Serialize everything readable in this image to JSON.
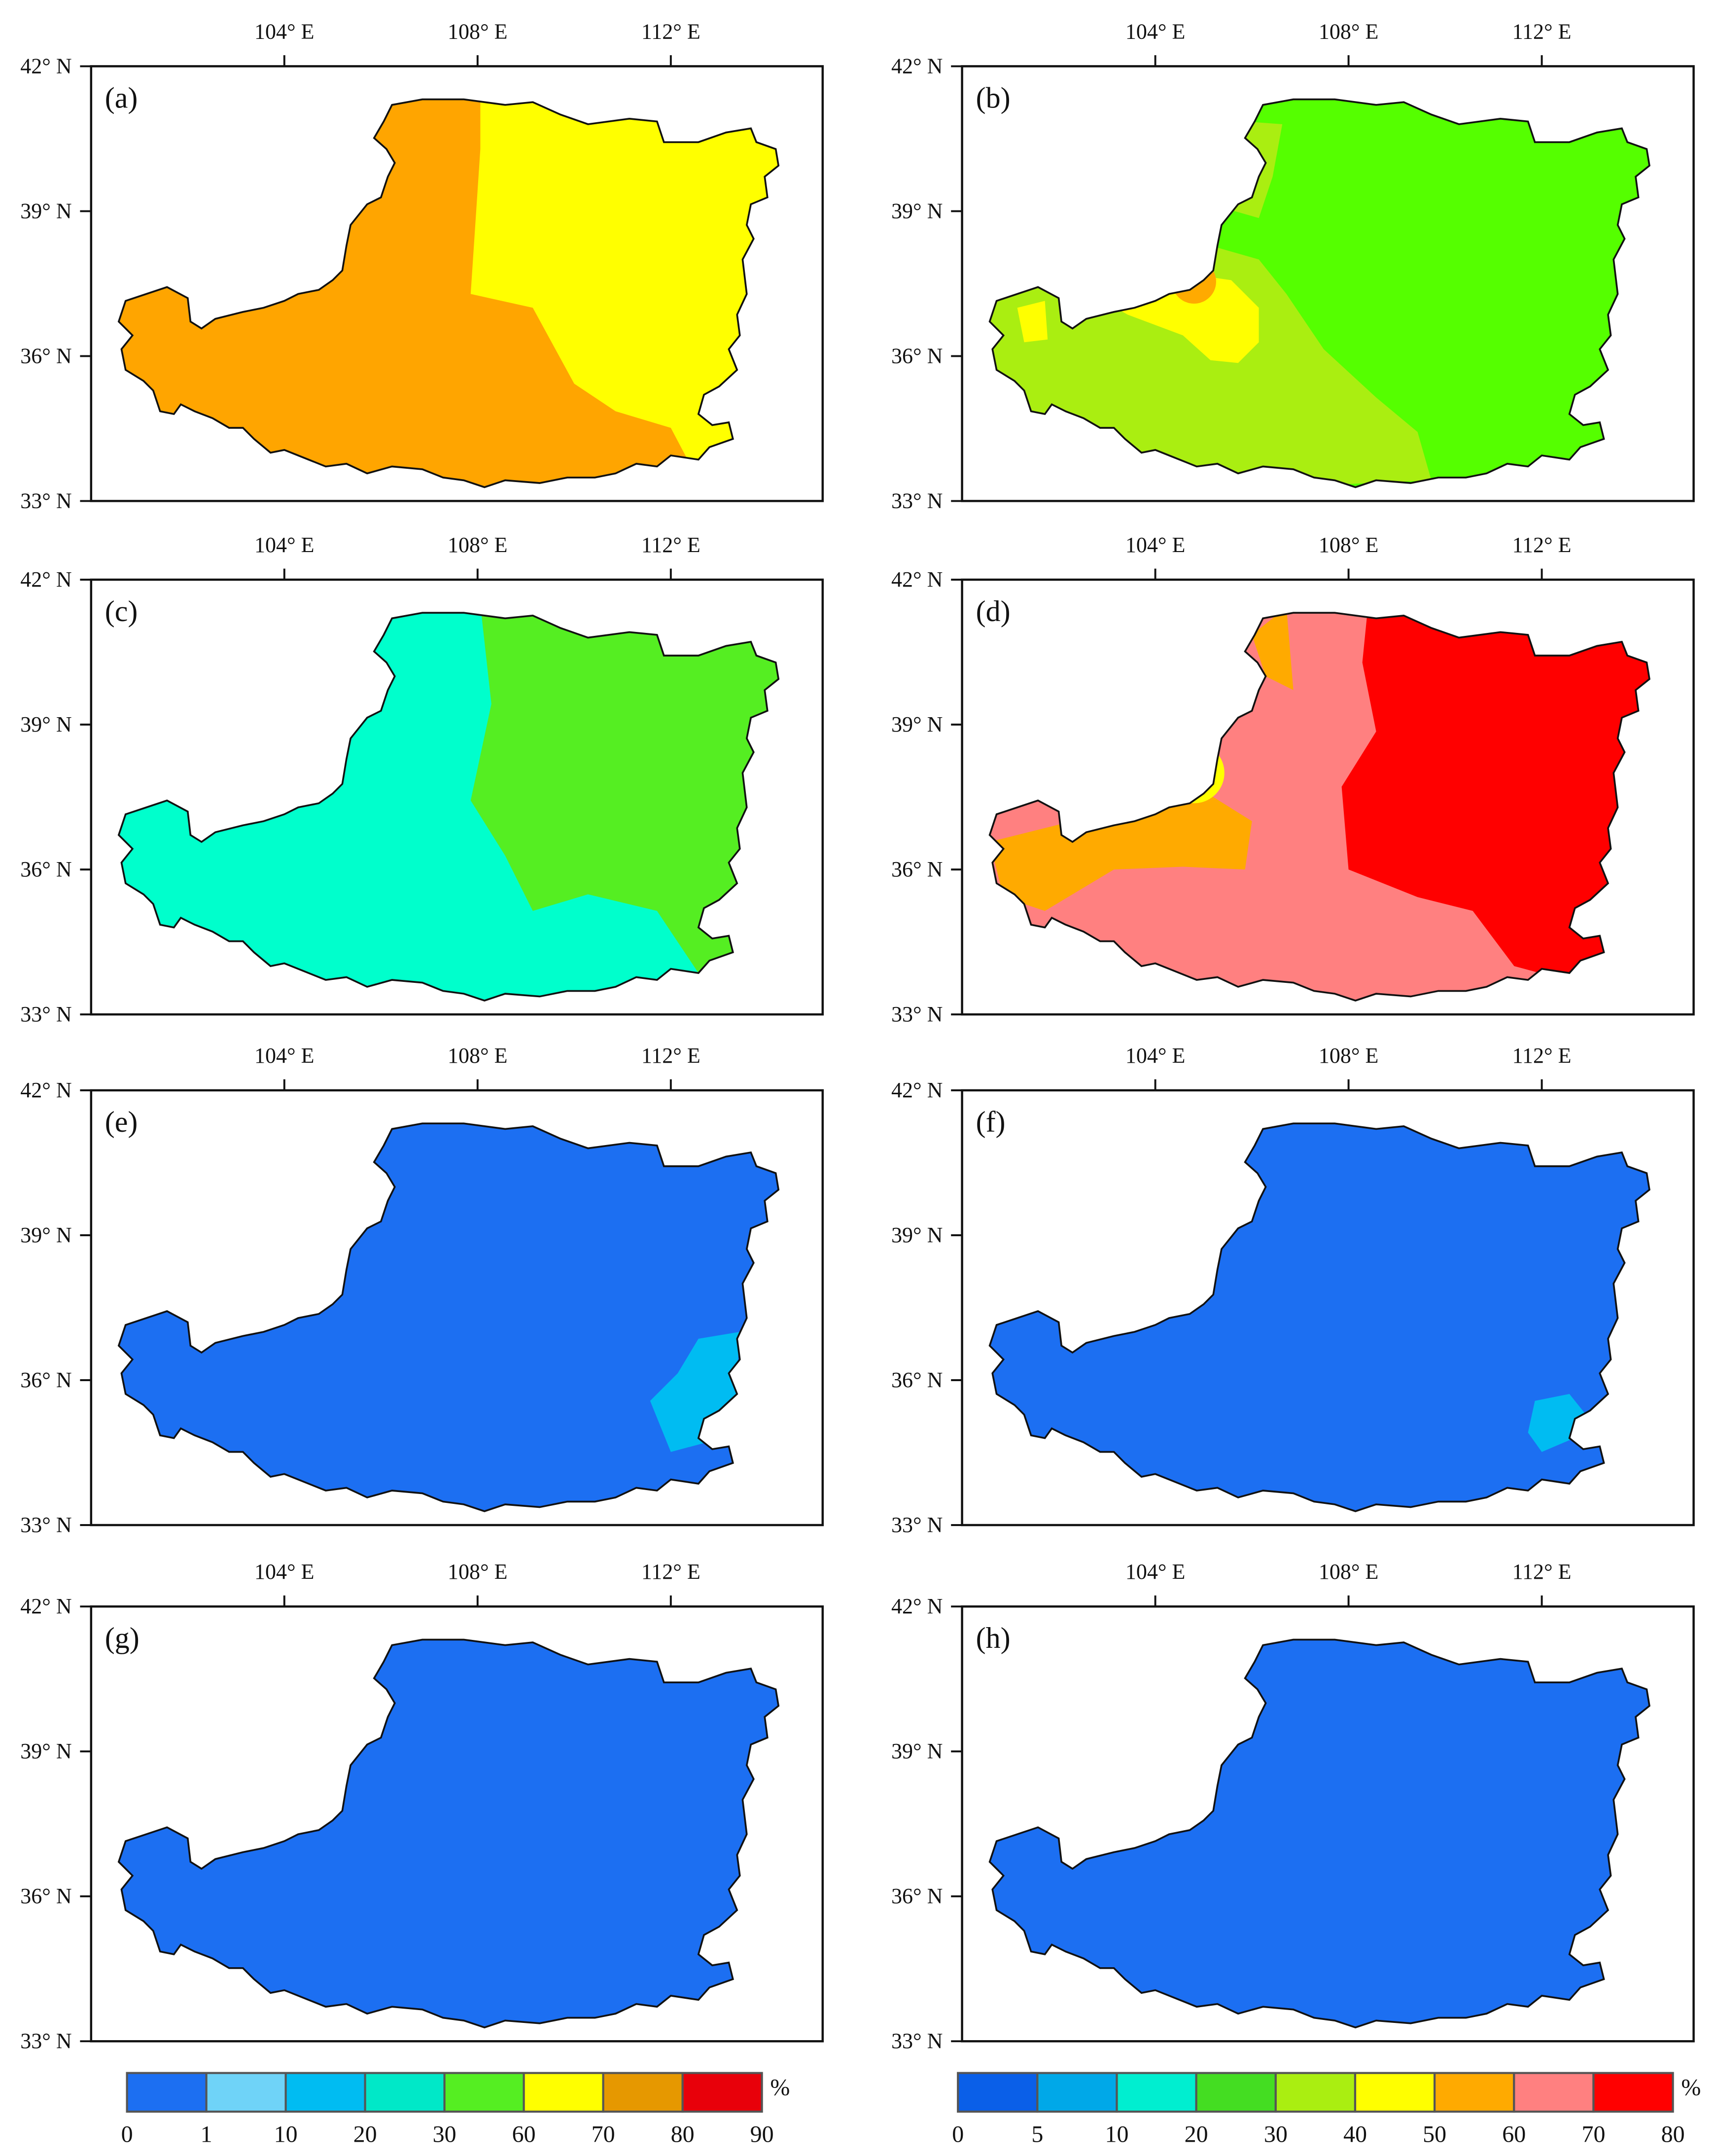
{
  "panels": [
    {
      "label": "(a)",
      "colorbar": "left"
    },
    {
      "label": "(b)",
      "colorbar": "right"
    },
    {
      "label": "(c)",
      "colorbar": "left"
    },
    {
      "label": "(d)",
      "colorbar": "right"
    },
    {
      "label": "(e)",
      "colorbar": "left"
    },
    {
      "label": "(f)",
      "colorbar": "right"
    },
    {
      "label": "(g)",
      "colorbar": "left"
    },
    {
      "label": "(h)",
      "colorbar": "right"
    }
  ],
  "axes": {
    "lon_ticks": [
      "104° E",
      "108° E",
      "112° E"
    ],
    "lat_ticks": [
      "42° N",
      "39° N",
      "36° N",
      "33° N"
    ]
  },
  "colorbars": {
    "left": {
      "unit": "%",
      "ticks": [
        "0",
        "1",
        "10",
        "20",
        "30",
        "60",
        "70",
        "80",
        "90"
      ],
      "colors": [
        "#1c6ff2",
        "#6fd3f8",
        "#00bcf2",
        "#00e8c8",
        "#55ee22",
        "#ffff00",
        "#e69800",
        "#e8000a"
      ]
    },
    "right": {
      "unit": "%",
      "ticks": [
        "0",
        "5",
        "10",
        "20",
        "30",
        "40",
        "50",
        "60",
        "70",
        "80"
      ],
      "colors": [
        "#0a5fe8",
        "#00a8e8",
        "#00eed0",
        "#44dd22",
        "#aaee11",
        "#ffff00",
        "#ffaa00",
        "#ff8080",
        "#ff0000"
      ]
    }
  },
  "palette": {
    "a_west": "#ffa500",
    "a_east": "#ffff00",
    "b_main": "#55ff00",
    "b_west": "#aaee11",
    "b_yellow": "#ffff00",
    "b_orange": "#ffaa00",
    "c_west": "#00ffcc",
    "c_east": "#55ee22",
    "d_pink": "#ff8080",
    "d_red": "#ff0000",
    "d_orange": "#ffaa00",
    "d_yellow": "#ffff00",
    "d_green": "#44dd22",
    "ef_base": "#1c6ff2",
    "ef_patch": "#00bcf2",
    "gh_base": "#1c6ff2"
  }
}
